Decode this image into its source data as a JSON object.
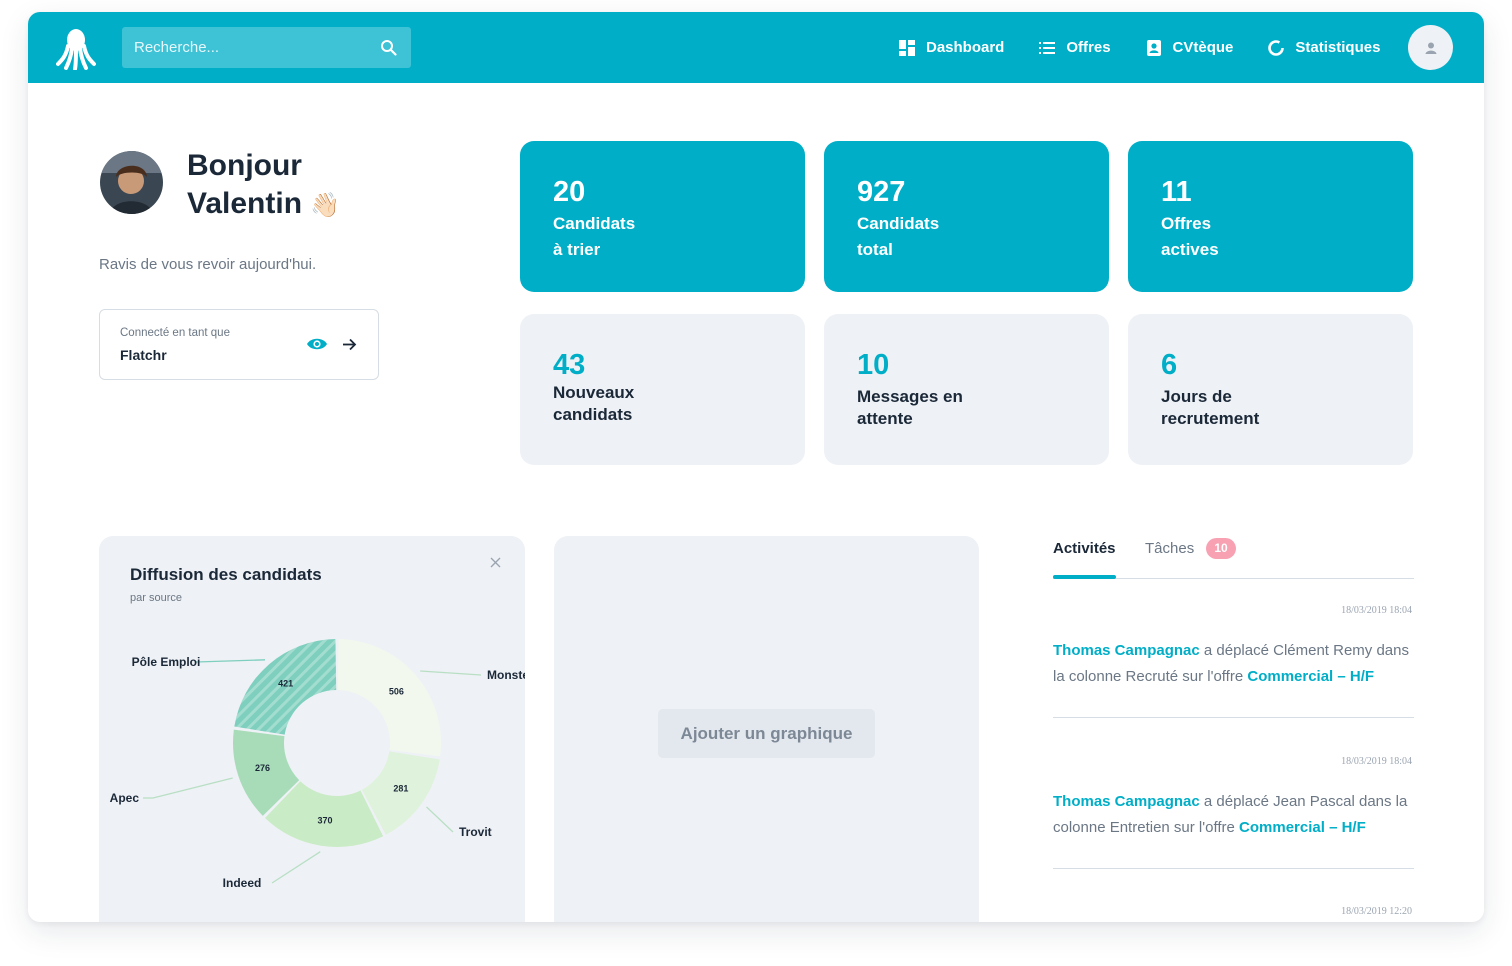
{
  "nav": {
    "search_placeholder": "Recherche...",
    "items": [
      {
        "label": "Dashboard",
        "icon": "dashboard-icon"
      },
      {
        "label": "Offres",
        "icon": "list-icon"
      },
      {
        "label": "CVtèque",
        "icon": "contact-book-icon"
      },
      {
        "label": "Statistiques",
        "icon": "donut-chart-icon"
      }
    ]
  },
  "profile": {
    "greeting_line1": "Bonjour",
    "greeting_line2": "Valentin",
    "wave": "👋🏻",
    "subtitle": "Ravis de vous revoir aujourd'hui.",
    "connected_label": "Connecté en tant que",
    "connected_value": "Flatchr"
  },
  "stats": [
    {
      "value": "20",
      "line1": "Candidats",
      "line2": "à trier"
    },
    {
      "value": "927",
      "line1": "Candidats",
      "line2": "total"
    },
    {
      "value": "11",
      "line1": "Offres",
      "line2": "actives"
    },
    {
      "value": "43",
      "line1": "Nouveaux",
      "line2": "candidats"
    },
    {
      "value": "10",
      "line1": "Messages en",
      "line2": "attente"
    },
    {
      "value": "6",
      "line1": "Jours de",
      "line2": "recrutement"
    }
  ],
  "chart_card": {
    "title": "Diffusion des candidats",
    "subtitle": "par source"
  },
  "chart_data": {
    "type": "pie",
    "title": "Diffusion des candidats",
    "subtitle": "par source",
    "categories": [
      "Monster",
      "Trovit",
      "Indeed",
      "Apec",
      "Pôle Emploi"
    ],
    "values": [
      506,
      281,
      370,
      276,
      421
    ],
    "colors": [
      "#f3f8ee",
      "#dff2db",
      "#c9ebc5",
      "#a8dcb9",
      "#7ecfbe"
    ]
  },
  "empty_card": {
    "button_label": "Ajouter un graphique"
  },
  "activity": {
    "tab_active": "Activités",
    "tab_tasks": "Tâches",
    "tasks_count": "10",
    "items": [
      {
        "time": "18/03/2019 18:04",
        "actor": "Thomas Campagnac",
        "middle": " a déplacé Clément Remy dans la colonne Recruté sur l'offre ",
        "offer": "Commercial – H/F"
      },
      {
        "time": "18/03/2019 18:04",
        "actor": "Thomas Campagnac",
        "middle": " a déplacé Jean Pascal dans la colonne Entretien sur l'offre ",
        "offer": "Commercial – H/F"
      },
      {
        "time": "18/03/2019 12:20"
      }
    ]
  }
}
